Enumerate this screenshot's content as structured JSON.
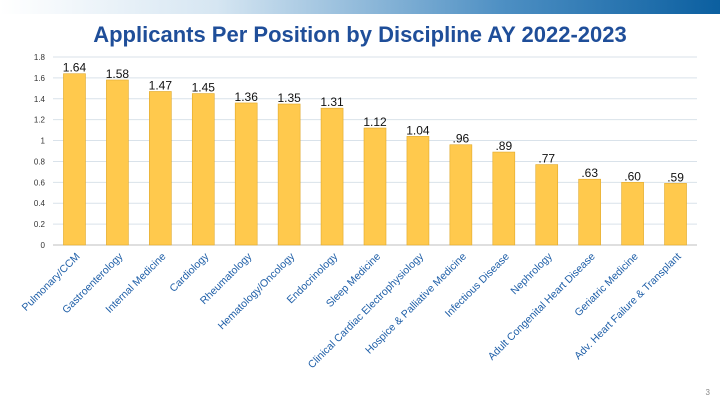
{
  "slide": {
    "title": "Applicants Per Position by Discipline AY 2022-2023",
    "page_number": "3"
  },
  "colors": {
    "bar": "#FFC94D",
    "bar_edge": "#E0A92A",
    "title": "#1F4E99",
    "grid": "#D9E2EA"
  },
  "chart_data": {
    "type": "bar",
    "title": "Applicants Per Position by Discipline AY 2022-2023",
    "xlabel": "",
    "ylabel": "",
    "ylim": [
      0,
      1.8
    ],
    "yticks": [
      "0",
      "0.2",
      "0.4",
      "0.6",
      "0.8",
      "1",
      "1.2",
      "1.4",
      "1.6",
      "1.8"
    ],
    "grid": true,
    "categories": [
      "Pulmonary/CCM",
      "Gastroenterology",
      "Internal Medicine",
      "Cardiology",
      "Rheumatology",
      "Hematology/Oncology",
      "Endocrinology",
      "Sleep Medicine",
      "Clinical Cardiac Electrophysiology",
      "Hospice & Palliative Medicine",
      "Infectious Disease",
      "Nephrology",
      "Adult Congenital Heart Disease",
      "Geriatric Medicine",
      "Adv. Heart Failure & Transplant"
    ],
    "values": [
      1.64,
      1.58,
      1.47,
      1.45,
      1.36,
      1.35,
      1.31,
      1.12,
      1.04,
      0.96,
      0.89,
      0.77,
      0.63,
      0.6,
      0.59
    ],
    "data_labels": [
      "1.64",
      "1.58",
      "1.47",
      "1.45",
      "1.36",
      "1.35",
      "1.31",
      "1.12",
      "1.04",
      ".96",
      ".89",
      ".77",
      ".63",
      ".60",
      ".59"
    ]
  }
}
